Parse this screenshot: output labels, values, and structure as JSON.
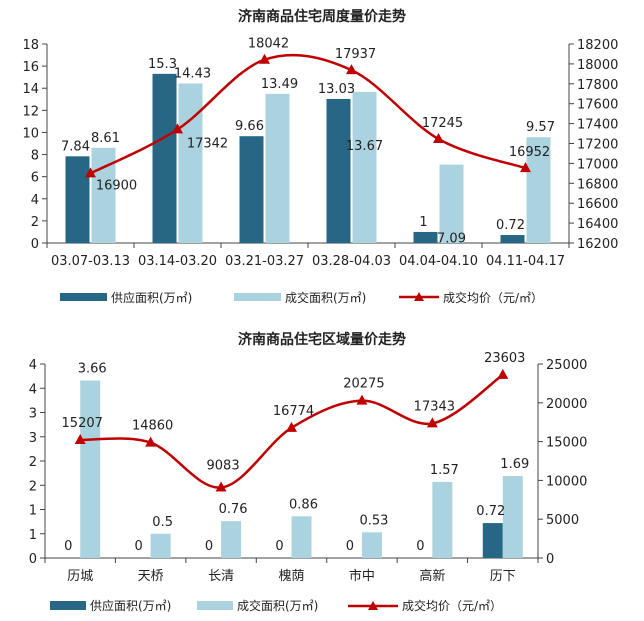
{
  "colors": {
    "supply": "#276785",
    "transaction": "#abd3df",
    "price": "#c00000"
  },
  "chart_data": [
    {
      "type": "bar",
      "title": "济南商品住宅周度量价走势",
      "categories": [
        "03.07-03.13",
        "03.14-03.20",
        "03.21-03.27",
        "03.28-04.03",
        "04.04-04.10",
        "04.11-04.17"
      ],
      "left_axis": {
        "min": 0,
        "max": 18,
        "step": 2,
        "ticks": [
          "0",
          "2",
          "4",
          "6",
          "8",
          "10",
          "12",
          "14",
          "16",
          "18"
        ]
      },
      "right_axis": {
        "min": 16200,
        "max": 18200,
        "step": 200,
        "ticks": [
          "16200",
          "16400",
          "16600",
          "16800",
          "17000",
          "17200",
          "17400",
          "17600",
          "17800",
          "18000",
          "18200"
        ]
      },
      "series": [
        {
          "name": "供应面积(万㎡)",
          "kind": "bar",
          "axis": "left",
          "values": [
            7.84,
            15.3,
            9.66,
            13.03,
            1,
            0.72
          ],
          "labels": [
            "7.84",
            "15.3",
            "9.66",
            "13.03",
            "1",
            "0.72"
          ]
        },
        {
          "name": "成交面积(万㎡)",
          "kind": "bar",
          "axis": "left",
          "values": [
            8.61,
            14.43,
            13.49,
            13.67,
            7.09,
            9.57
          ],
          "labels": [
            "8.61",
            "14.43",
            "13.49",
            "13.67",
            "7.09",
            "9.57"
          ]
        },
        {
          "name": "成交均价（元/㎡）",
          "kind": "line",
          "axis": "right",
          "values": [
            16900,
            17342,
            18042,
            17937,
            17245,
            16952
          ],
          "labels": [
            "16900",
            "17342",
            "18042",
            "17937",
            "17245",
            "16952"
          ]
        }
      ],
      "legend": "bottom"
    },
    {
      "type": "bar",
      "title": "济南商品住宅区域量价走势",
      "categories": [
        "历城",
        "天桥",
        "长清",
        "槐荫",
        "市中",
        "高新",
        "历下"
      ],
      "left_axis": {
        "min": 0,
        "max": 4,
        "step": 0.5,
        "ticks": [
          "0",
          "1",
          "1",
          "2",
          "2",
          "3",
          "3",
          "4",
          "4"
        ]
      },
      "right_axis": {
        "min": 0,
        "max": 25000,
        "step": 5000,
        "ticks": [
          "0",
          "5000",
          "10000",
          "15000",
          "20000",
          "25000"
        ]
      },
      "series": [
        {
          "name": "供应面积(万㎡)",
          "kind": "bar",
          "axis": "left",
          "values": [
            0,
            0,
            0,
            0,
            0,
            0,
            0.72
          ],
          "labels": [
            "0",
            "0",
            "0",
            "0",
            "0",
            "0",
            "0.72"
          ]
        },
        {
          "name": "成交面积(万㎡)",
          "kind": "bar",
          "axis": "left",
          "values": [
            3.66,
            0.5,
            0.76,
            0.86,
            0.53,
            1.57,
            1.69
          ],
          "labels": [
            "3.66",
            "0.5",
            "0.76",
            "0.86",
            "0.53",
            "1.57",
            "1.69"
          ]
        },
        {
          "name": "成交均价（元/㎡）",
          "kind": "line",
          "axis": "right",
          "values": [
            15207,
            14860,
            9083,
            16774,
            20275,
            17343,
            23603
          ],
          "labels": [
            "15207",
            "14860",
            "9083",
            "16774",
            "20275",
            "17343",
            "23603"
          ]
        }
      ],
      "legend": "bottom"
    }
  ]
}
